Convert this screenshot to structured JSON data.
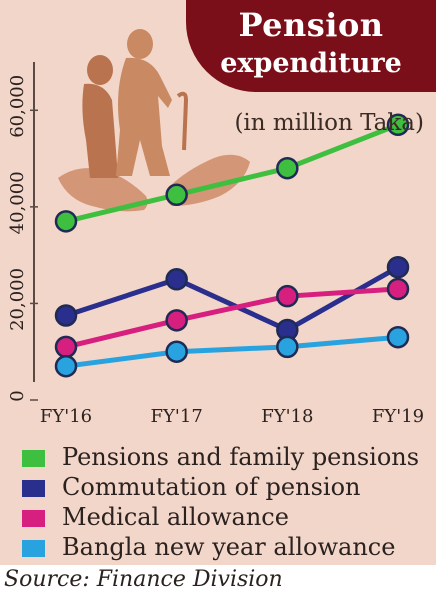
{
  "title_line1": "Pension",
  "title_line2": "expenditure",
  "unit_note": "(in million Taka)",
  "source": "Source: Finance Division",
  "chart_data": {
    "type": "line",
    "x": [
      "FY'16",
      "FY'17",
      "FY'18",
      "FY'19"
    ],
    "ylim": [
      0,
      70000
    ],
    "y_ticks": [
      "0",
      "20,000",
      "40,000",
      "60,000"
    ],
    "grid": false,
    "legend_position": "bottom",
    "series": [
      {
        "name": "Pensions and family pensions",
        "color": "#3fbf3f",
        "values": [
          37000,
          42500,
          48000,
          57000
        ]
      },
      {
        "name": "Commutation of pension",
        "color": "#2a2e8c",
        "values": [
          17500,
          25000,
          14500,
          27500
        ]
      },
      {
        "name": "Medical allowance",
        "color": "#d61f7e",
        "values": [
          11000,
          16500,
          21500,
          23000
        ]
      },
      {
        "name": "Bangla new year allowance",
        "color": "#29a3e0",
        "values": [
          7000,
          10000,
          11000,
          13000
        ]
      }
    ]
  }
}
